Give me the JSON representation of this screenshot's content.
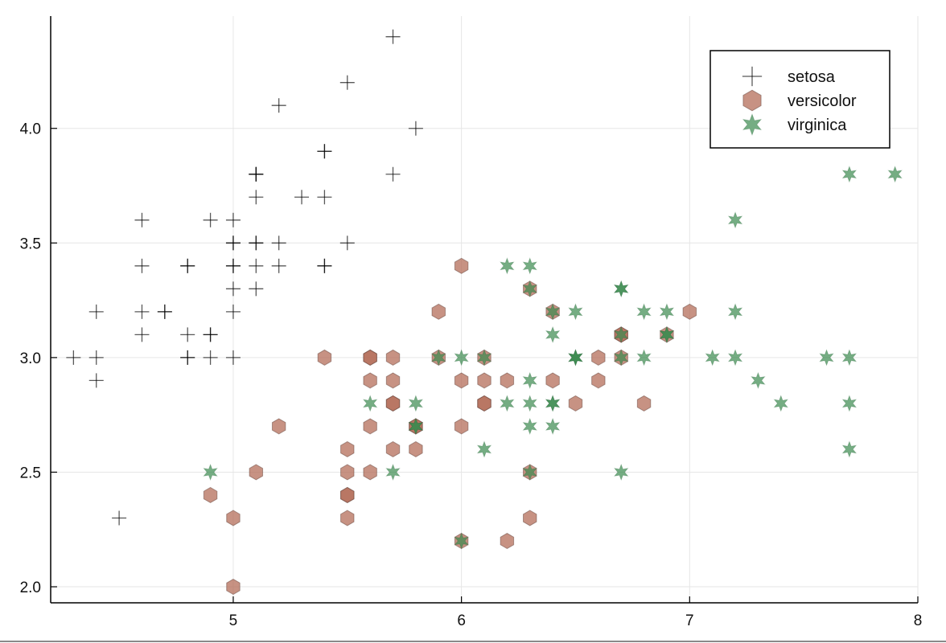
{
  "chart_data": {
    "type": "scatter",
    "title": "",
    "xlabel": "",
    "ylabel": "",
    "xlim": [
      4.2,
      8.0
    ],
    "ylim": [
      1.93,
      4.49
    ],
    "grid": true,
    "legend_position": "top-right",
    "x_ticks": [
      5,
      6,
      7,
      8
    ],
    "x_tick_labels": [
      "5",
      "6",
      "7",
      "8"
    ],
    "y_ticks": [
      2.0,
      2.5,
      3.0,
      3.5,
      4.0
    ],
    "y_tick_labels": [
      "2.0",
      "2.5",
      "3.0",
      "3.5",
      "4.0"
    ],
    "series": [
      {
        "name": "setosa",
        "marker": "cross-icon",
        "color": "#000000",
        "points": [
          [
            5.1,
            3.5
          ],
          [
            4.9,
            3.0
          ],
          [
            4.7,
            3.2
          ],
          [
            4.6,
            3.1
          ],
          [
            5.0,
            3.6
          ],
          [
            5.4,
            3.9
          ],
          [
            4.6,
            3.4
          ],
          [
            5.0,
            3.4
          ],
          [
            4.4,
            2.9
          ],
          [
            4.9,
            3.1
          ],
          [
            5.4,
            3.7
          ],
          [
            4.8,
            3.4
          ],
          [
            4.8,
            3.0
          ],
          [
            4.3,
            3.0
          ],
          [
            5.8,
            4.0
          ],
          [
            5.7,
            4.4
          ],
          [
            5.4,
            3.9
          ],
          [
            5.1,
            3.5
          ],
          [
            5.7,
            3.8
          ],
          [
            5.1,
            3.8
          ],
          [
            5.4,
            3.4
          ],
          [
            5.1,
            3.7
          ],
          [
            4.6,
            3.6
          ],
          [
            5.1,
            3.3
          ],
          [
            4.8,
            3.4
          ],
          [
            5.0,
            3.0
          ],
          [
            5.0,
            3.4
          ],
          [
            5.2,
            3.5
          ],
          [
            5.2,
            3.4
          ],
          [
            4.7,
            3.2
          ],
          [
            4.8,
            3.1
          ],
          [
            5.4,
            3.4
          ],
          [
            5.2,
            4.1
          ],
          [
            5.5,
            4.2
          ],
          [
            4.9,
            3.1
          ],
          [
            5.0,
            3.2
          ],
          [
            5.5,
            3.5
          ],
          [
            4.9,
            3.6
          ],
          [
            4.4,
            3.0
          ],
          [
            5.1,
            3.4
          ],
          [
            5.0,
            3.5
          ],
          [
            4.5,
            2.3
          ],
          [
            4.4,
            3.2
          ],
          [
            5.0,
            3.5
          ],
          [
            5.1,
            3.8
          ],
          [
            4.8,
            3.0
          ],
          [
            5.1,
            3.8
          ],
          [
            4.6,
            3.2
          ],
          [
            5.3,
            3.7
          ],
          [
            5.0,
            3.3
          ]
        ]
      },
      {
        "name": "versicolor",
        "marker": "hexagon-icon",
        "color": "#b46e5a",
        "points": [
          [
            7.0,
            3.2
          ],
          [
            6.4,
            3.2
          ],
          [
            6.9,
            3.1
          ],
          [
            5.5,
            2.3
          ],
          [
            6.5,
            2.8
          ],
          [
            5.7,
            2.8
          ],
          [
            6.3,
            3.3
          ],
          [
            4.9,
            2.4
          ],
          [
            6.6,
            2.9
          ],
          [
            5.2,
            2.7
          ],
          [
            5.0,
            2.0
          ],
          [
            5.9,
            3.0
          ],
          [
            6.0,
            2.2
          ],
          [
            6.1,
            2.9
          ],
          [
            5.6,
            2.9
          ],
          [
            6.7,
            3.1
          ],
          [
            5.6,
            3.0
          ],
          [
            5.8,
            2.7
          ],
          [
            6.2,
            2.2
          ],
          [
            5.6,
            2.5
          ],
          [
            5.9,
            3.2
          ],
          [
            6.1,
            2.8
          ],
          [
            6.3,
            2.5
          ],
          [
            6.1,
            2.8
          ],
          [
            6.4,
            2.9
          ],
          [
            6.6,
            3.0
          ],
          [
            6.8,
            2.8
          ],
          [
            6.7,
            3.0
          ],
          [
            6.0,
            2.9
          ],
          [
            5.7,
            2.6
          ],
          [
            5.5,
            2.4
          ],
          [
            5.5,
            2.4
          ],
          [
            5.8,
            2.7
          ],
          [
            6.0,
            2.7
          ],
          [
            5.4,
            3.0
          ],
          [
            6.0,
            3.4
          ],
          [
            6.7,
            3.1
          ],
          [
            6.3,
            2.3
          ],
          [
            5.6,
            3.0
          ],
          [
            5.5,
            2.5
          ],
          [
            5.5,
            2.6
          ],
          [
            6.1,
            3.0
          ],
          [
            5.8,
            2.6
          ],
          [
            5.0,
            2.3
          ],
          [
            5.6,
            2.7
          ],
          [
            5.7,
            3.0
          ],
          [
            5.7,
            2.9
          ],
          [
            6.2,
            2.9
          ],
          [
            5.1,
            2.5
          ],
          [
            5.7,
            2.8
          ]
        ]
      },
      {
        "name": "virginica",
        "marker": "star-icon",
        "color": "#3a8a4e",
        "points": [
          [
            6.3,
            3.3
          ],
          [
            5.8,
            2.7
          ],
          [
            7.1,
            3.0
          ],
          [
            6.3,
            2.9
          ],
          [
            6.5,
            3.0
          ],
          [
            7.6,
            3.0
          ],
          [
            4.9,
            2.5
          ],
          [
            7.3,
            2.9
          ],
          [
            6.7,
            2.5
          ],
          [
            7.2,
            3.6
          ],
          [
            6.5,
            3.2
          ],
          [
            6.4,
            2.7
          ],
          [
            6.8,
            3.0
          ],
          [
            5.7,
            2.5
          ],
          [
            5.8,
            2.8
          ],
          [
            6.4,
            3.2
          ],
          [
            6.5,
            3.0
          ],
          [
            7.7,
            3.8
          ],
          [
            7.7,
            2.6
          ],
          [
            6.0,
            2.2
          ],
          [
            6.9,
            3.2
          ],
          [
            5.6,
            2.8
          ],
          [
            7.7,
            2.8
          ],
          [
            6.3,
            2.7
          ],
          [
            6.7,
            3.3
          ],
          [
            7.2,
            3.2
          ],
          [
            6.2,
            2.8
          ],
          [
            6.1,
            3.0
          ],
          [
            6.4,
            2.8
          ],
          [
            7.2,
            3.0
          ],
          [
            7.4,
            2.8
          ],
          [
            7.9,
            3.8
          ],
          [
            6.4,
            2.8
          ],
          [
            6.3,
            2.8
          ],
          [
            6.1,
            2.6
          ],
          [
            7.7,
            3.0
          ],
          [
            6.3,
            3.4
          ],
          [
            6.4,
            3.1
          ],
          [
            6.0,
            3.0
          ],
          [
            6.9,
            3.1
          ],
          [
            6.7,
            3.1
          ],
          [
            6.9,
            3.1
          ],
          [
            5.8,
            2.7
          ],
          [
            6.8,
            3.2
          ],
          [
            6.7,
            3.3
          ],
          [
            6.7,
            3.0
          ],
          [
            6.3,
            2.5
          ],
          [
            6.5,
            3.0
          ],
          [
            6.2,
            3.4
          ],
          [
            5.9,
            3.0
          ]
        ]
      }
    ]
  }
}
